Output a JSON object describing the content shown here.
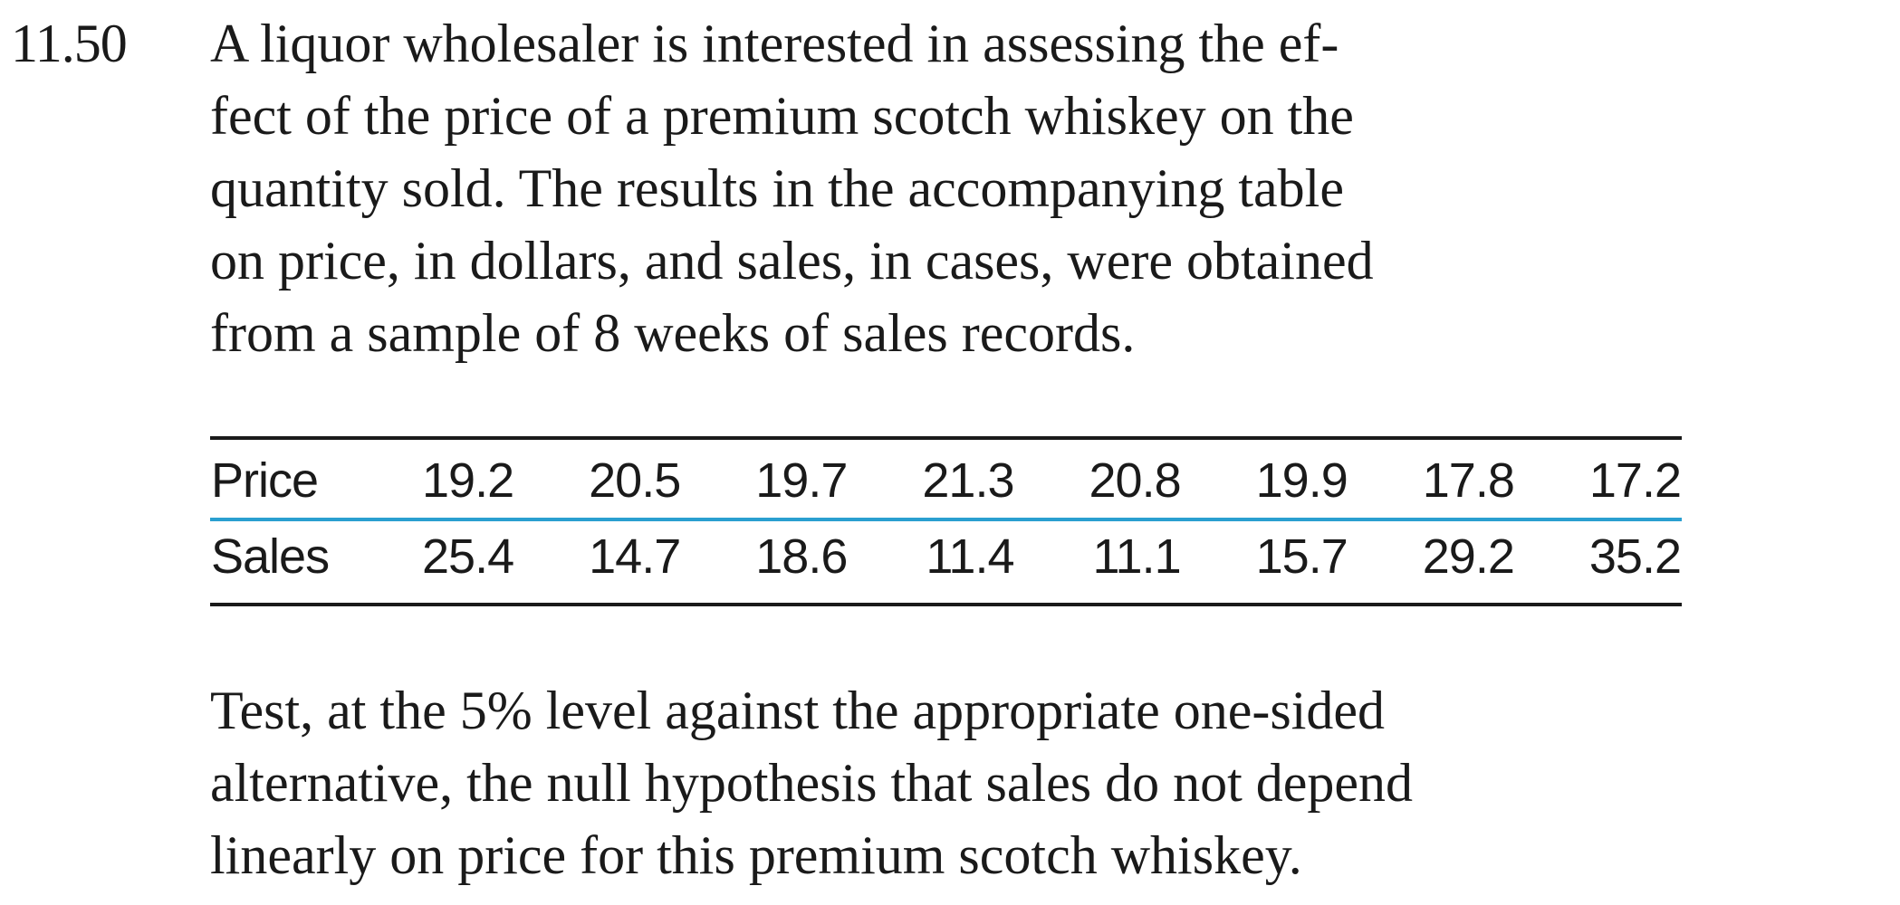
{
  "problem": {
    "number": "11.50",
    "intro_lines": [
      "A liquor wholesaler is interested in assessing the ef-",
      "fect of the price of a premium scotch whiskey on the",
      "quantity sold. The results in the accompanying table",
      "on price, in dollars, and sales, in cases, were obtained",
      "from a sample of 8 weeks of sales records."
    ],
    "table": {
      "rows": [
        {
          "label": "Price",
          "values": [
            "19.2",
            "20.5",
            "19.7",
            "21.3",
            "20.8",
            "19.9",
            "17.8",
            "17.2"
          ]
        },
        {
          "label": "Sales",
          "values": [
            "25.4",
            "14.7",
            "18.6",
            "11.4",
            "11.1",
            "15.7",
            "29.2",
            "35.2"
          ]
        }
      ]
    },
    "followup_lines": [
      "Test, at the 5% level against the appropriate one-sided",
      "alternative, the null hypothesis that sales do not depend",
      "linearly on price for this premium scotch whiskey."
    ]
  },
  "colors": {
    "text": "#1a1a1a",
    "table_rule": "#1a1a1a",
    "row_separator": "#2a9fd0",
    "background": "#ffffff"
  }
}
